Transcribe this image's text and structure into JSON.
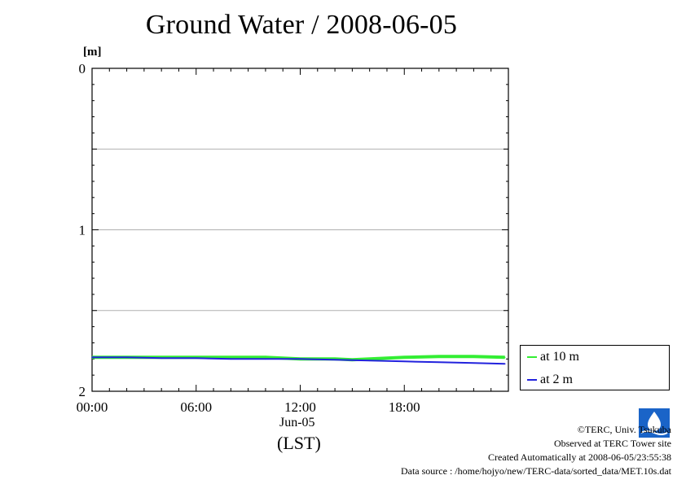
{
  "header": {
    "title": "Ground Water / 2008-06-05"
  },
  "axis": {
    "unit": "[m]",
    "x_date": "Jun-05",
    "x_timezone": "(LST)"
  },
  "chart_data": {
    "type": "line",
    "title": "Ground Water / 2008-06-05",
    "ylabel": "[m]",
    "xlabel": "(LST)",
    "y_inverted": true,
    "ylim": [
      0,
      2
    ],
    "xlim": [
      "00:00",
      "24:00"
    ],
    "y_ticks": [
      "0",
      "1",
      "2"
    ],
    "x_ticks": [
      "00:00",
      "06:00",
      "12:00",
      "18:00"
    ],
    "x_sublabel": "Jun-05",
    "grid": "horizontal every 0.5 m",
    "legend_position": "lower-right outside",
    "series": [
      {
        "name": "at 10 m",
        "color": "#33ee33",
        "x_hours": [
          0,
          2,
          4,
          6,
          8,
          10,
          12,
          14,
          15,
          16,
          18,
          20,
          22,
          23.8
        ],
        "values": [
          1.79,
          1.79,
          1.79,
          1.79,
          1.79,
          1.79,
          1.8,
          1.8,
          1.805,
          1.8,
          1.79,
          1.785,
          1.785,
          1.79
        ]
      },
      {
        "name": "at 2 m",
        "color": "#2222dd",
        "x_hours": [
          0,
          2,
          4,
          6,
          8,
          10,
          12,
          14,
          16,
          18,
          20,
          22,
          23.8
        ],
        "values": [
          1.79,
          1.79,
          1.795,
          1.795,
          1.8,
          1.8,
          1.8,
          1.805,
          1.81,
          1.815,
          1.82,
          1.825,
          1.83
        ]
      }
    ]
  },
  "credits": {
    "copyright": "©TERC, Univ. Tsukuba",
    "observed": "Observed at TERC Tower site",
    "created": "Created Automatically at 2008-06-05/23:55:38",
    "source": "Data source : /home/hojyo/new/TERC-data/sorted_data/MET.10s.dat"
  }
}
